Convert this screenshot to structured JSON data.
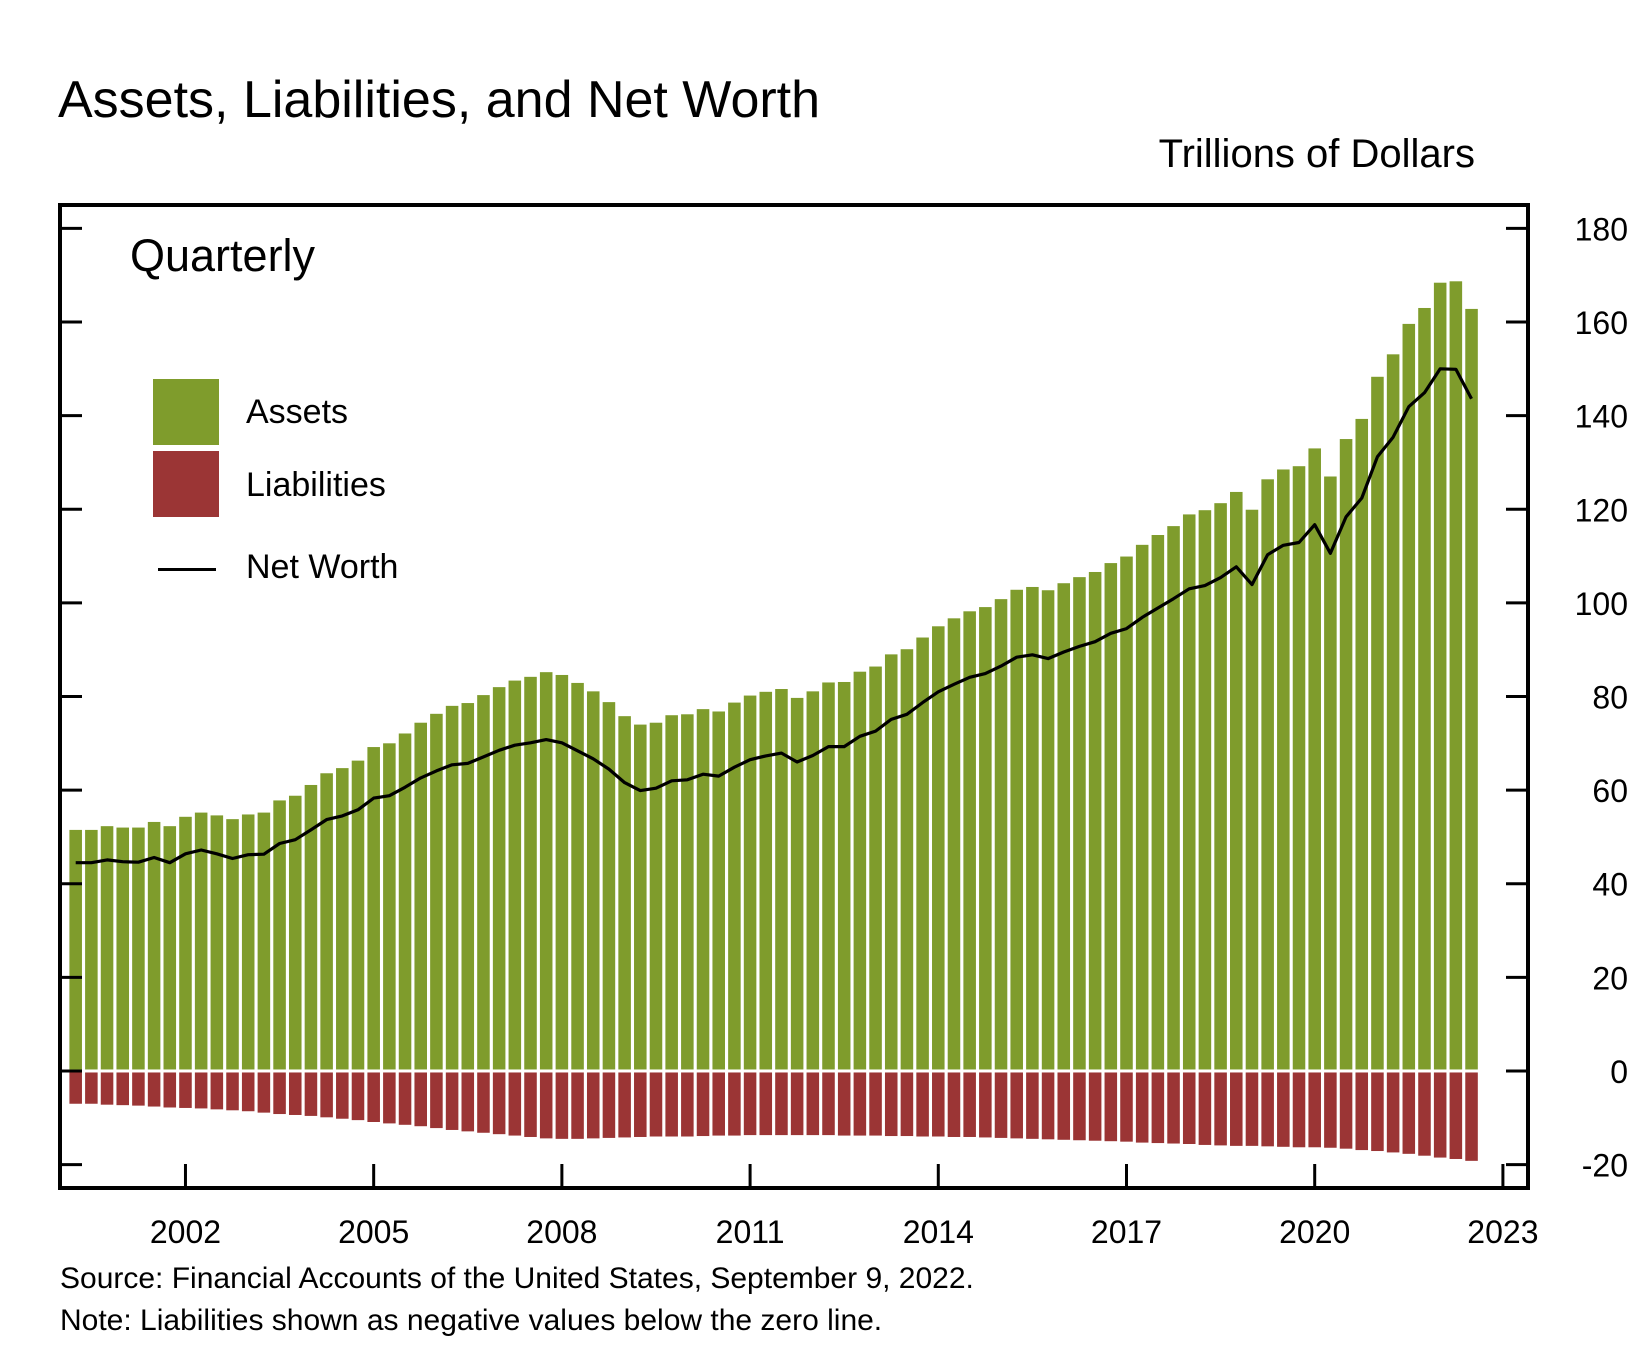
{
  "title": "Assets, Liabilities, and Net Worth",
  "unit_label": "Trillions of Dollars",
  "frequency_label": "Quarterly",
  "legend": {
    "assets": "Assets",
    "liabilities": "Liabilities",
    "net_worth": "Net Worth"
  },
  "source": "Source: Financial Accounts of the United States, September 9, 2022.",
  "note": "Note: Liabilities shown as negative values below the zero line.",
  "colors": {
    "assets": "#7f9c2c",
    "liabilities": "#9b3535",
    "net_worth": "#000000",
    "background": "#ffffff"
  },
  "chart_data": {
    "type": "bar",
    "title": "Assets, Liabilities, and Net Worth",
    "ylabel": "Trillions of Dollars",
    "xlabel": "",
    "ylim": [
      -25,
      185
    ],
    "y_ticks": [
      180,
      160,
      140,
      120,
      100,
      80,
      60,
      40,
      20,
      0,
      -20
    ],
    "x_tick_labels": [
      "2002",
      "2005",
      "2008",
      "2011",
      "2014",
      "2017",
      "2020",
      "2023"
    ],
    "x_tick_years": [
      2002,
      2005,
      2008,
      2011,
      2014,
      2017,
      2020,
      2023
    ],
    "x_range": [
      2000,
      2023.4
    ],
    "x_start": 2000.25,
    "x_step": 0.25,
    "legend_position": "top-left",
    "grid": false,
    "series": [
      {
        "name": "Assets",
        "type": "bar",
        "values": [
          51.5,
          51.5,
          52.3,
          52.0,
          52.0,
          53.2,
          52.3,
          54.3,
          55.2,
          54.6,
          53.8,
          54.8,
          55.2,
          57.8,
          58.8,
          61.1,
          63.6,
          64.7,
          66.3,
          69.2,
          70.0,
          72.1,
          74.4,
          76.3,
          78.0,
          78.6,
          80.3,
          82.0,
          83.4,
          84.2,
          85.2,
          84.6,
          82.9,
          81.1,
          78.8,
          75.8,
          74.0,
          74.4,
          76.0,
          76.2,
          77.3,
          76.8,
          78.7,
          80.2,
          81.0,
          81.6,
          79.7,
          81.1,
          83.0,
          83.1,
          85.3,
          86.4,
          89.0,
          90.1,
          92.6,
          95.0,
          96.7,
          98.2,
          99.1,
          100.8,
          102.8,
          103.4,
          102.7,
          104.2,
          105.5,
          106.6,
          108.5,
          109.9,
          112.4,
          114.5,
          116.4,
          118.9,
          119.8,
          121.3,
          123.7,
          119.9,
          126.4,
          128.5,
          129.2,
          133.0,
          127.0,
          135.0,
          139.3,
          148.3,
          153.1,
          159.6,
          163.0,
          168.4,
          168.7,
          162.8
        ]
      },
      {
        "name": "Liabilities",
        "type": "bar",
        "values": [
          -7.0,
          -7.0,
          -7.2,
          -7.3,
          -7.4,
          -7.6,
          -7.8,
          -7.9,
          -8.0,
          -8.2,
          -8.4,
          -8.6,
          -8.9,
          -9.2,
          -9.4,
          -9.6,
          -9.9,
          -10.2,
          -10.5,
          -10.9,
          -11.2,
          -11.5,
          -11.8,
          -12.2,
          -12.6,
          -12.9,
          -13.2,
          -13.5,
          -13.8,
          -14.1,
          -14.4,
          -14.5,
          -14.5,
          -14.4,
          -14.3,
          -14.2,
          -14.1,
          -14.0,
          -14.0,
          -14.0,
          -13.9,
          -13.8,
          -13.8,
          -13.7,
          -13.7,
          -13.7,
          -13.7,
          -13.7,
          -13.7,
          -13.8,
          -13.8,
          -13.8,
          -13.9,
          -13.9,
          -14.0,
          -14.0,
          -14.1,
          -14.1,
          -14.2,
          -14.3,
          -14.4,
          -14.5,
          -14.6,
          -14.7,
          -14.8,
          -14.9,
          -15.0,
          -15.1,
          -15.3,
          -15.4,
          -15.5,
          -15.6,
          -15.8,
          -15.9,
          -16.0,
          -16.0,
          -16.1,
          -16.2,
          -16.3,
          -16.3,
          -16.4,
          -16.6,
          -16.9,
          -17.1,
          -17.4,
          -17.7,
          -18.1,
          -18.5,
          -18.8,
          -19.2
        ]
      },
      {
        "name": "Net Worth",
        "type": "line",
        "values": [
          44.5,
          44.5,
          45.1,
          44.7,
          44.6,
          45.6,
          44.5,
          46.4,
          47.2,
          46.4,
          45.4,
          46.2,
          46.3,
          48.6,
          49.4,
          51.5,
          53.7,
          54.5,
          55.8,
          58.3,
          58.8,
          60.6,
          62.6,
          64.1,
          65.4,
          65.7,
          67.1,
          68.5,
          69.6,
          70.1,
          70.8,
          70.1,
          68.4,
          66.7,
          64.5,
          61.6,
          59.9,
          60.4,
          62.0,
          62.2,
          63.4,
          63.0,
          64.9,
          66.5,
          67.3,
          67.9,
          66.0,
          67.4,
          69.3,
          69.3,
          71.5,
          72.6,
          75.1,
          76.2,
          78.7,
          81.0,
          82.6,
          84.1,
          84.9,
          86.5,
          88.4,
          88.9,
          88.1,
          89.5,
          90.7,
          91.7,
          93.5,
          94.5,
          96.9,
          98.9,
          100.9,
          103.0,
          103.7,
          105.4,
          107.7,
          103.9,
          110.3,
          112.3,
          112.9,
          116.7,
          110.6,
          118.4,
          122.4,
          131.2,
          135.4,
          141.9,
          144.9,
          150.0,
          149.9,
          143.6
        ]
      }
    ]
  }
}
